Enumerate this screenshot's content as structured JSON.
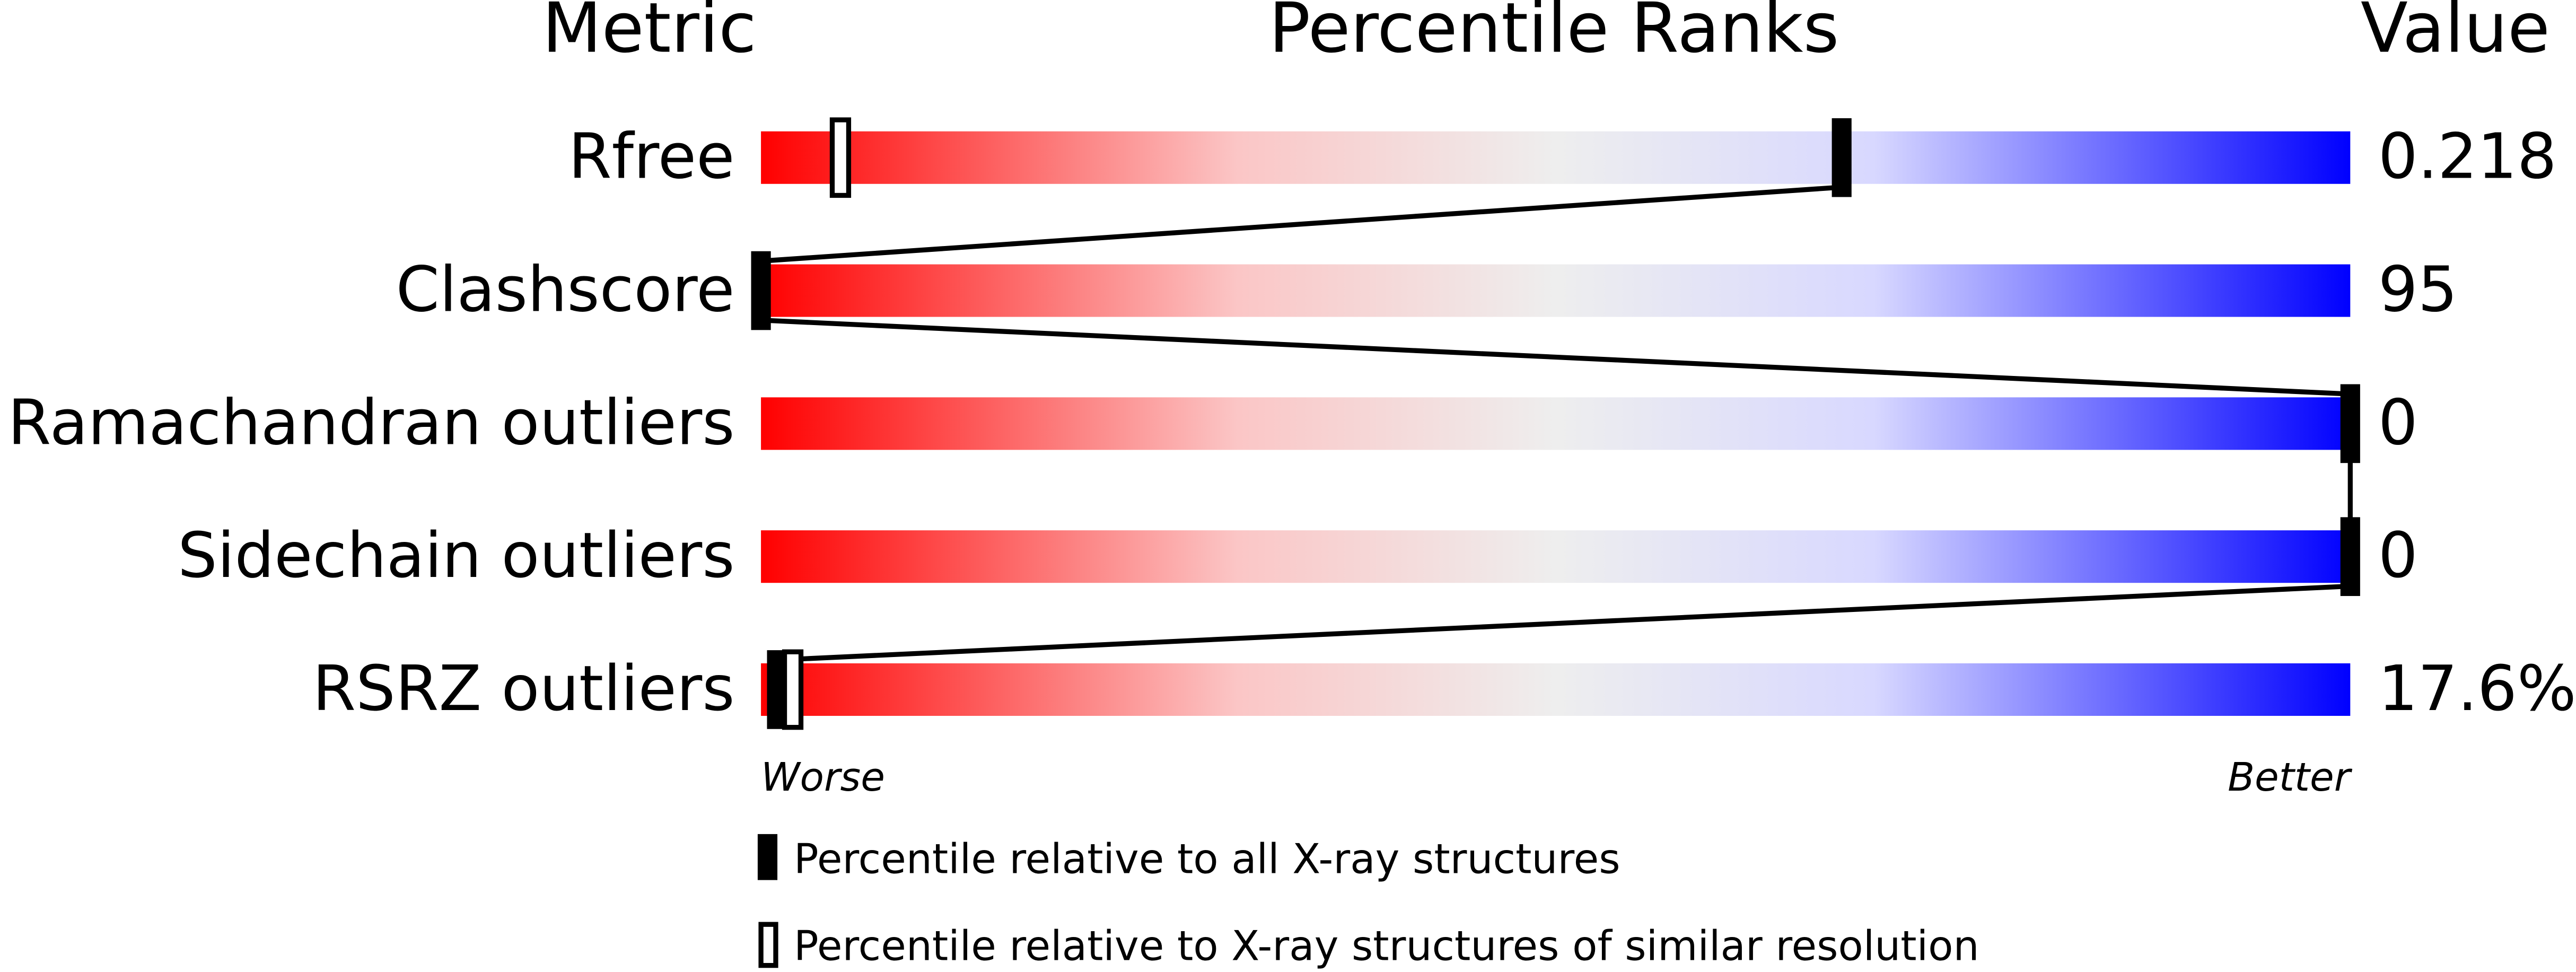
{
  "chart_data": {
    "type": "percentile",
    "headers": {
      "metric": "Metric",
      "ranks": "Percentile Ranks",
      "value": "Value"
    },
    "categories": [
      "Rfree",
      "Clashscore",
      "Ramachandran outliers",
      "Sidechain outliers",
      "RSRZ outliers"
    ],
    "metric_values": [
      "0.218",
      "95",
      "0",
      "0",
      "17.6%"
    ],
    "series": [
      {
        "name": "Percentile relative to all X-ray structures",
        "color": "#000000",
        "values": [
          68,
          0,
          100,
          100,
          1
        ]
      },
      {
        "name": "Percentile relative to X-ray structures of similar resolution",
        "color": "#000000",
        "values": [
          5,
          null,
          null,
          null,
          2
        ]
      }
    ],
    "xlim": [
      0,
      100
    ],
    "axis_labels": {
      "low": "Worse",
      "high": "Better"
    }
  }
}
